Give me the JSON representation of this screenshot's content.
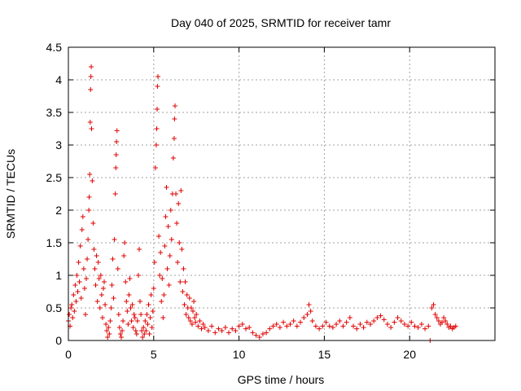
{
  "chart_data": {
    "type": "scatter",
    "title": "Day 040 of 2025, SRMTID for receiver tamr",
    "xlabel": "GPS time / hours",
    "ylabel": "SRMTID / TECUs",
    "xlim": [
      0,
      25
    ],
    "ylim": [
      0,
      4.5
    ],
    "xticks": [
      0,
      5,
      10,
      15,
      20
    ],
    "xtick_labels": [
      "0",
      "5",
      "10",
      "15",
      "20"
    ],
    "yticks": [
      0,
      0.5,
      1,
      1.5,
      2,
      2.5,
      3,
      3.5,
      4,
      4.5
    ],
    "ytick_labels": [
      "0",
      "0.5",
      "1",
      "1.5",
      "2",
      "2.5",
      "3",
      "3.5",
      "4",
      "4.5"
    ],
    "grid": true,
    "marker": "+",
    "color": "#e00000",
    "series": [
      {
        "name": "SRMTID",
        "points": [
          [
            0.0,
            0.3
          ],
          [
            0.05,
            0.4
          ],
          [
            0.1,
            0.22
          ],
          [
            0.15,
            0.5
          ],
          [
            0.2,
            0.55
          ],
          [
            0.25,
            0.35
          ],
          [
            0.3,
            0.7
          ],
          [
            0.35,
            0.45
          ],
          [
            0.4,
            0.85
          ],
          [
            0.45,
            0.6
          ],
          [
            0.5,
            1.0
          ],
          [
            0.55,
            0.75
          ],
          [
            0.6,
            1.2
          ],
          [
            0.65,
            0.9
          ],
          [
            0.7,
            1.45
          ],
          [
            0.75,
            0.65
          ],
          [
            0.8,
            1.7
          ],
          [
            0.85,
            1.9
          ],
          [
            0.9,
            1.1
          ],
          [
            0.95,
            0.8
          ],
          [
            1.0,
            0.4
          ],
          [
            1.05,
            0.95
          ],
          [
            1.1,
            1.25
          ],
          [
            1.15,
            1.55
          ],
          [
            1.2,
            2.0
          ],
          [
            1.22,
            2.2
          ],
          [
            1.25,
            2.55
          ],
          [
            1.28,
            3.35
          ],
          [
            1.3,
            3.85
          ],
          [
            1.32,
            4.05
          ],
          [
            1.34,
            4.2
          ],
          [
            1.36,
            3.25
          ],
          [
            1.4,
            2.45
          ],
          [
            1.45,
            1.8
          ],
          [
            1.5,
            1.4
          ],
          [
            1.55,
            1.1
          ],
          [
            1.6,
            0.85
          ],
          [
            1.65,
            1.3
          ],
          [
            1.7,
            0.6
          ],
          [
            1.75,
            1.2
          ],
          [
            1.8,
            0.95
          ],
          [
            1.85,
            0.5
          ],
          [
            1.9,
            1.0
          ],
          [
            1.95,
            0.7
          ],
          [
            2.0,
            0.35
          ],
          [
            2.05,
            0.8
          ],
          [
            2.1,
            0.9
          ],
          [
            2.15,
            0.55
          ],
          [
            2.2,
            0.25
          ],
          [
            2.25,
            0.15
          ],
          [
            2.3,
            0.05
          ],
          [
            2.35,
            0.2
          ],
          [
            2.4,
            0.1
          ],
          [
            2.45,
            0.3
          ],
          [
            2.5,
            0.5
          ],
          [
            2.55,
            0.85
          ],
          [
            2.6,
            1.25
          ],
          [
            2.65,
            0.65
          ],
          [
            2.7,
            1.55
          ],
          [
            2.75,
            2.25
          ],
          [
            2.78,
            2.65
          ],
          [
            2.8,
            2.85
          ],
          [
            2.82,
            3.05
          ],
          [
            2.85,
            3.22
          ],
          [
            2.9,
            1.1
          ],
          [
            2.95,
            0.4
          ],
          [
            3.0,
            0.2
          ],
          [
            3.05,
            0.1
          ],
          [
            3.1,
            0.05
          ],
          [
            3.15,
            0.15
          ],
          [
            3.2,
            0.3
          ],
          [
            3.25,
            1.3
          ],
          [
            3.3,
            1.5
          ],
          [
            3.35,
            0.9
          ],
          [
            3.4,
            0.6
          ],
          [
            3.45,
            0.45
          ],
          [
            3.5,
            0.25
          ],
          [
            3.55,
            0.7
          ],
          [
            3.6,
            0.95
          ],
          [
            3.65,
            0.5
          ],
          [
            3.7,
            0.3
          ],
          [
            3.75,
            0.55
          ],
          [
            3.8,
            0.2
          ],
          [
            3.85,
            0.4
          ],
          [
            3.9,
            0.35
          ],
          [
            3.95,
            0.15
          ],
          [
            4.0,
            0.1
          ],
          [
            4.05,
            0.3
          ],
          [
            4.1,
            1.0
          ],
          [
            4.15,
            1.4
          ],
          [
            4.2,
            0.6
          ],
          [
            4.25,
            0.4
          ],
          [
            4.3,
            0.15
          ],
          [
            4.35,
            0.05
          ],
          [
            4.4,
            0.2
          ],
          [
            4.45,
            0.1
          ],
          [
            4.5,
            0.3
          ],
          [
            4.55,
            0.15
          ],
          [
            4.6,
            0.4
          ],
          [
            4.65,
            0.25
          ],
          [
            4.7,
            0.55
          ],
          [
            4.75,
            0.1
          ],
          [
            4.8,
            0.35
          ],
          [
            4.85,
            0.7
          ],
          [
            4.9,
            0.2
          ],
          [
            4.95,
            0.45
          ],
          [
            5.0,
            0.8
          ],
          [
            5.05,
            1.2
          ],
          [
            5.1,
            2.65
          ],
          [
            5.15,
            3.0
          ],
          [
            5.18,
            3.25
          ],
          [
            5.2,
            3.55
          ],
          [
            5.22,
            3.9
          ],
          [
            5.25,
            4.05
          ],
          [
            5.3,
            1.6
          ],
          [
            5.35,
            1.0
          ],
          [
            5.4,
            1.35
          ],
          [
            5.45,
            0.6
          ],
          [
            5.5,
            0.95
          ],
          [
            5.55,
            0.35
          ],
          [
            5.6,
            0.7
          ],
          [
            5.65,
            1.45
          ],
          [
            5.7,
            1.9
          ],
          [
            5.75,
            2.35
          ],
          [
            5.8,
            1.1
          ],
          [
            5.85,
            1.75
          ],
          [
            5.9,
            0.85
          ],
          [
            5.95,
            1.3
          ],
          [
            6.0,
            2.0
          ],
          [
            6.05,
            1.55
          ],
          [
            6.1,
            2.25
          ],
          [
            6.15,
            2.8
          ],
          [
            6.2,
            3.1
          ],
          [
            6.22,
            3.4
          ],
          [
            6.25,
            3.6
          ],
          [
            6.3,
            2.25
          ],
          [
            6.35,
            1.8
          ],
          [
            6.4,
            1.2
          ],
          [
            6.45,
            2.1
          ],
          [
            6.5,
            1.5
          ],
          [
            6.55,
            0.9
          ],
          [
            6.6,
            2.3
          ],
          [
            6.65,
            1.4
          ],
          [
            6.7,
            0.75
          ],
          [
            6.75,
            1.1
          ],
          [
            6.8,
            0.55
          ],
          [
            6.85,
            0.9
          ],
          [
            6.9,
            0.4
          ],
          [
            6.95,
            0.7
          ],
          [
            7.0,
            0.5
          ],
          [
            7.05,
            0.35
          ],
          [
            7.1,
            0.65
          ],
          [
            7.15,
            0.3
          ],
          [
            7.2,
            0.5
          ],
          [
            7.25,
            0.25
          ],
          [
            7.3,
            0.45
          ],
          [
            7.35,
            0.6
          ],
          [
            7.4,
            0.35
          ],
          [
            7.45,
            0.28
          ],
          [
            7.5,
            0.4
          ],
          [
            7.6,
            0.22
          ],
          [
            7.7,
            0.3
          ],
          [
            7.8,
            0.18
          ],
          [
            7.9,
            0.25
          ],
          [
            8.0,
            0.2
          ],
          [
            8.2,
            0.15
          ],
          [
            8.4,
            0.22
          ],
          [
            8.6,
            0.12
          ],
          [
            8.8,
            0.18
          ],
          [
            9.0,
            0.15
          ],
          [
            9.2,
            0.2
          ],
          [
            9.4,
            0.12
          ],
          [
            9.6,
            0.18
          ],
          [
            9.8,
            0.15
          ],
          [
            10.0,
            0.22
          ],
          [
            10.2,
            0.25
          ],
          [
            10.4,
            0.18
          ],
          [
            10.6,
            0.2
          ],
          [
            10.8,
            0.12
          ],
          [
            11.0,
            0.08
          ],
          [
            11.2,
            0.05
          ],
          [
            11.4,
            0.1
          ],
          [
            11.6,
            0.12
          ],
          [
            11.8,
            0.18
          ],
          [
            12.0,
            0.22
          ],
          [
            12.2,
            0.25
          ],
          [
            12.4,
            0.2
          ],
          [
            12.6,
            0.28
          ],
          [
            12.8,
            0.22
          ],
          [
            13.0,
            0.25
          ],
          [
            13.2,
            0.3
          ],
          [
            13.4,
            0.22
          ],
          [
            13.6,
            0.28
          ],
          [
            13.8,
            0.35
          ],
          [
            14.0,
            0.4
          ],
          [
            14.1,
            0.55
          ],
          [
            14.2,
            0.45
          ],
          [
            14.3,
            0.3
          ],
          [
            14.5,
            0.22
          ],
          [
            14.7,
            0.18
          ],
          [
            14.9,
            0.22
          ],
          [
            15.1,
            0.28
          ],
          [
            15.3,
            0.22
          ],
          [
            15.5,
            0.2
          ],
          [
            15.7,
            0.25
          ],
          [
            15.9,
            0.3
          ],
          [
            16.1,
            0.22
          ],
          [
            16.3,
            0.28
          ],
          [
            16.5,
            0.35
          ],
          [
            16.7,
            0.22
          ],
          [
            16.9,
            0.18
          ],
          [
            17.1,
            0.25
          ],
          [
            17.3,
            0.2
          ],
          [
            17.5,
            0.28
          ],
          [
            17.7,
            0.25
          ],
          [
            17.9,
            0.3
          ],
          [
            18.1,
            0.35
          ],
          [
            18.3,
            0.38
          ],
          [
            18.5,
            0.32
          ],
          [
            18.7,
            0.25
          ],
          [
            18.9,
            0.2
          ],
          [
            19.1,
            0.28
          ],
          [
            19.3,
            0.35
          ],
          [
            19.5,
            0.3
          ],
          [
            19.7,
            0.25
          ],
          [
            19.9,
            0.22
          ],
          [
            20.1,
            0.28
          ],
          [
            20.3,
            0.22
          ],
          [
            20.5,
            0.2
          ],
          [
            20.7,
            0.25
          ],
          [
            20.9,
            0.18
          ],
          [
            21.1,
            0.22
          ],
          [
            21.2,
            0.0
          ],
          [
            21.3,
            0.5
          ],
          [
            21.4,
            0.55
          ],
          [
            21.5,
            0.4
          ],
          [
            21.6,
            0.35
          ],
          [
            21.7,
            0.3
          ],
          [
            21.8,
            0.25
          ],
          [
            21.9,
            0.28
          ],
          [
            22.0,
            0.35
          ],
          [
            22.1,
            0.3
          ],
          [
            22.2,
            0.25
          ],
          [
            22.3,
            0.2
          ],
          [
            22.4,
            0.22
          ],
          [
            22.5,
            0.18
          ],
          [
            22.6,
            0.2
          ],
          [
            22.7,
            0.22
          ]
        ]
      }
    ]
  }
}
